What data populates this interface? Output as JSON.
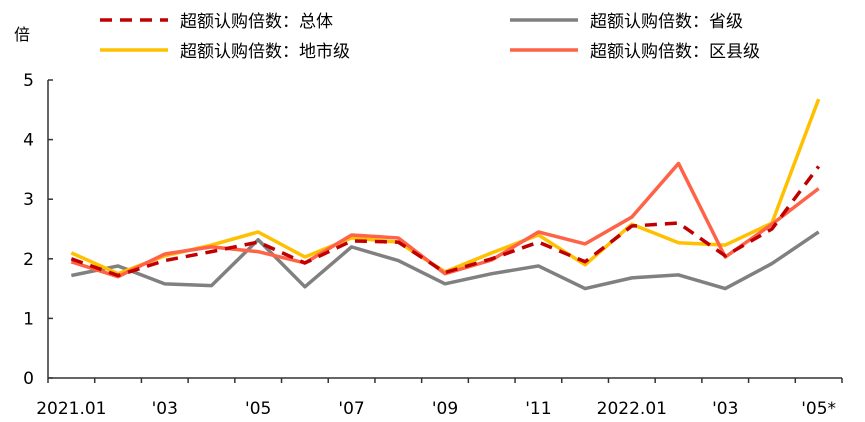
{
  "chart_data": {
    "type": "line",
    "ylabel": "倍",
    "ylim": [
      0,
      5
    ],
    "yticks": [
      "0",
      "1",
      "2",
      "3",
      "4",
      "5"
    ],
    "x": [
      "2021.01",
      "2021.02",
      "2021.03",
      "2021.04",
      "2021.05",
      "2021.06",
      "2021.07",
      "2021.08",
      "2021.09",
      "2021.10",
      "2021.11",
      "2021.12",
      "2022.01",
      "2022.02",
      "2022.03",
      "2022.04",
      "2022.05"
    ],
    "xtick_labels": [
      "2021.01",
      "",
      "'03",
      "",
      "'05",
      "",
      "'07",
      "",
      "'09",
      "",
      "'11",
      "",
      "2022.01",
      "",
      "'03",
      "",
      "'05*"
    ],
    "grid": false,
    "legend_position": "top",
    "series": [
      {
        "name": "超额认购倍数：总体",
        "color": "#C00000",
        "dash": true,
        "values": [
          2.0,
          1.72,
          1.97,
          2.12,
          2.28,
          1.93,
          2.3,
          2.28,
          1.77,
          2.0,
          2.28,
          1.95,
          2.55,
          2.6,
          2.05,
          2.5,
          3.55
        ]
      },
      {
        "name": "超额认购倍数：省级",
        "color": "#808080",
        "dash": false,
        "values": [
          1.72,
          1.88,
          1.58,
          1.55,
          2.32,
          1.53,
          2.2,
          1.97,
          1.58,
          1.75,
          1.88,
          1.5,
          1.68,
          1.73,
          1.5,
          1.92,
          2.45
        ]
      },
      {
        "name": "超额认购倍数：地市级",
        "color": "#FFC000",
        "dash": false,
        "values": [
          2.1,
          1.75,
          2.05,
          2.23,
          2.45,
          2.03,
          2.35,
          2.28,
          1.78,
          2.1,
          2.4,
          1.9,
          2.58,
          2.27,
          2.23,
          2.6,
          4.68
        ]
      },
      {
        "name": "超额认购倍数：区县级",
        "color": "#FF6347",
        "dash": false,
        "values": [
          1.95,
          1.7,
          2.08,
          2.2,
          2.12,
          1.93,
          2.4,
          2.35,
          1.75,
          1.98,
          2.45,
          2.25,
          2.7,
          3.6,
          2.03,
          2.58,
          3.18
        ]
      }
    ]
  }
}
